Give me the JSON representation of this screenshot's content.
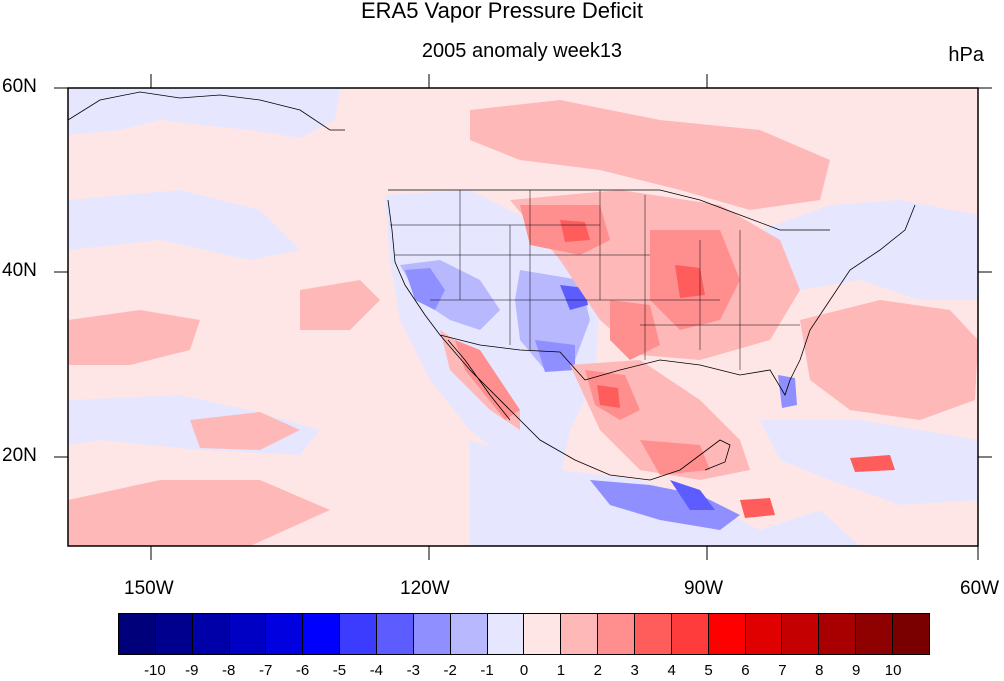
{
  "title": "ERA5 Vapor Pressure Deficit",
  "subtitle": "2005 anomaly week13",
  "units": "hPa",
  "lat_labels": [
    "60N",
    "40N",
    "20N"
  ],
  "lon_labels": [
    "150W",
    "120W",
    "90W",
    "60W"
  ],
  "colorbar": {
    "labels": [
      "-10",
      "-9",
      "-8",
      "-7",
      "-6",
      "-5",
      "-4",
      "-3",
      "-2",
      "-1",
      "0",
      "1",
      "2",
      "3",
      "4",
      "5",
      "6",
      "7",
      "8",
      "9",
      "10"
    ],
    "colors": [
      "#00007a",
      "#00008f",
      "#0000a8",
      "#0000c4",
      "#0000e0",
      "#0000ff",
      "#3c3cff",
      "#5c5cff",
      "#8f8fff",
      "#b8b8ff",
      "#e6e6ff",
      "#ffe6e6",
      "#ffb8b8",
      "#ff8f8f",
      "#ff5c5c",
      "#ff3c3c",
      "#ff0000",
      "#e00000",
      "#c40000",
      "#a80000",
      "#8f0000",
      "#7a0000"
    ]
  },
  "chart_data": {
    "type": "heatmap",
    "title": "ERA5 Vapor Pressure Deficit",
    "subtitle": "2005 anomaly week13",
    "units": "hPa",
    "xlim": [
      -160,
      -60
    ],
    "ylim": [
      10,
      60
    ],
    "x_ticks": [
      "150W",
      "120W",
      "90W",
      "60W"
    ],
    "y_ticks": [
      "60N",
      "40N",
      "20N"
    ],
    "colorbar_range": [
      -10,
      10
    ]
  }
}
